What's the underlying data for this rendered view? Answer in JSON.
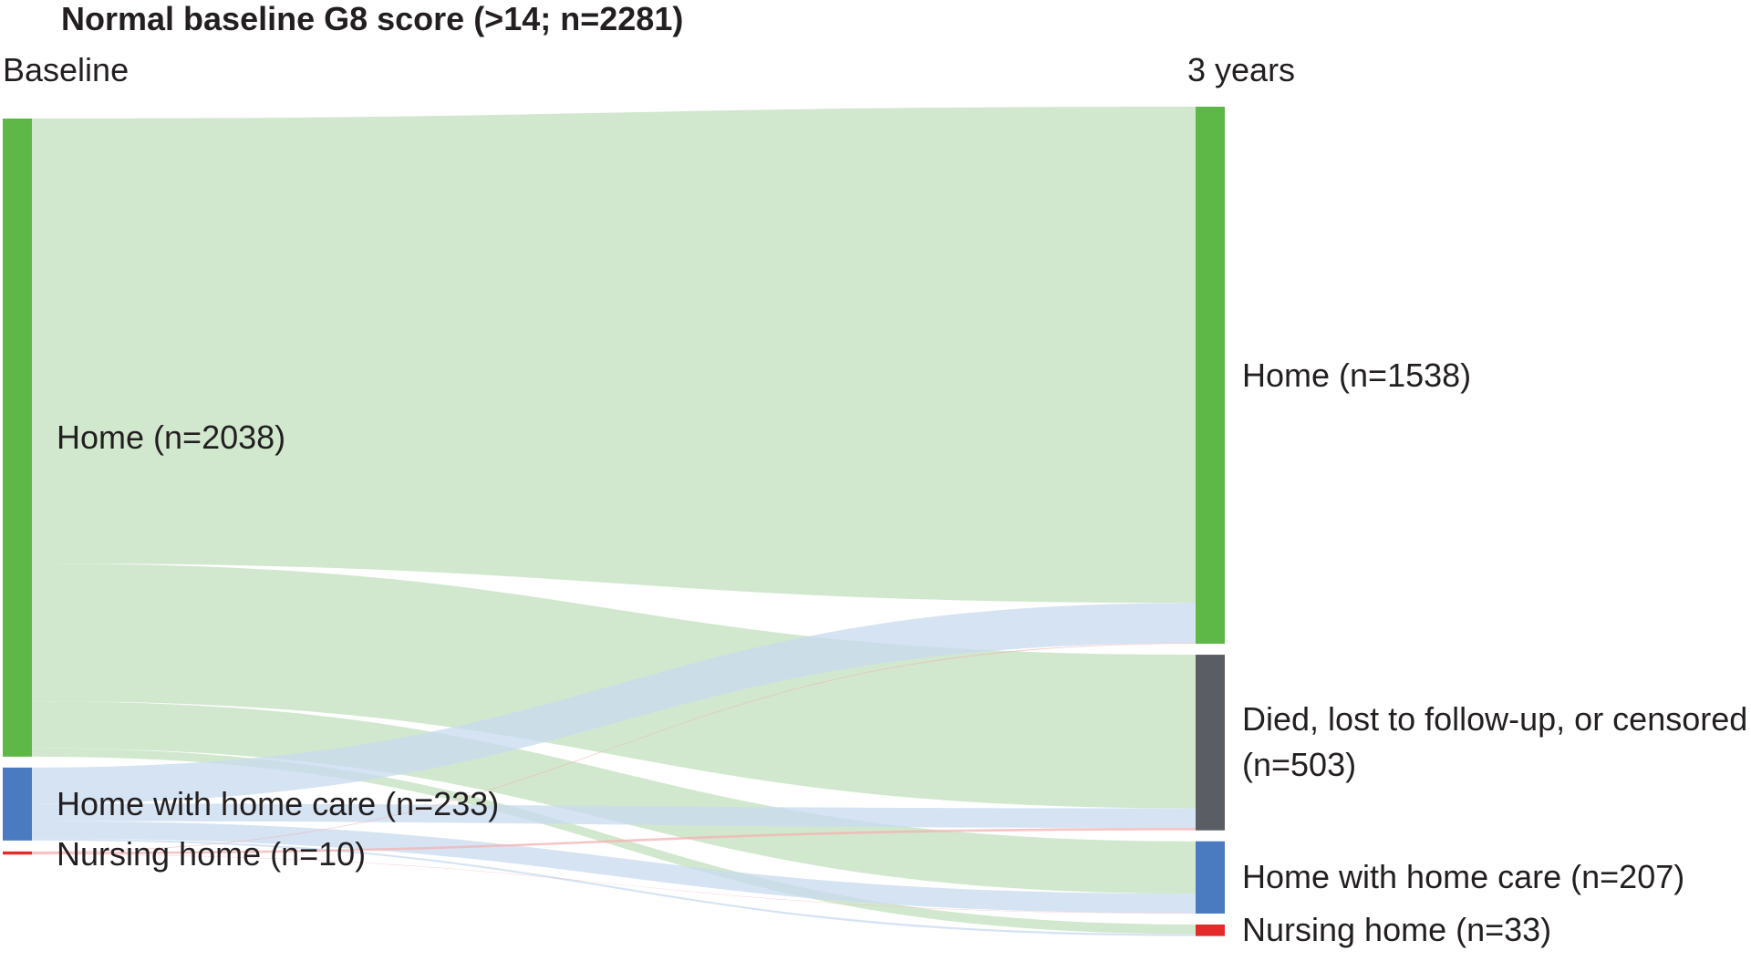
{
  "chart_data": {
    "type": "sankey",
    "title": "Normal baseline G8 score (>14; n=2281)",
    "columns": [
      "Baseline",
      "3 years"
    ],
    "colors": {
      "Home": "#5db848",
      "Home with home care": "#4a7bc1",
      "Nursing home": "#e52a2a",
      "Died, lost to follow-up, or censored": "#5a5d63",
      "link_Home": "#c4e2c0",
      "link_Home with home care": "#c9dbf0",
      "link_Nursing home": "#f4b3b3"
    },
    "baseline": [
      {
        "label": "Home (n=2038)",
        "category": "Home",
        "n": 2038
      },
      {
        "label": "Home with home care (n=233)",
        "category": "Home with home care",
        "n": 233
      },
      {
        "label": "Nursing home (n=10)",
        "category": "Nursing home",
        "n": 10
      }
    ],
    "three_years": [
      {
        "label": "Home (n=1538)",
        "category": "Home",
        "n": 1538
      },
      {
        "label": "Died, lost to follow-up, or censored (n=503)",
        "category": "Died, lost to follow-up, or censored",
        "n": 503
      },
      {
        "label": "Home with home care (n=207)",
        "category": "Home with home care",
        "n": 207
      },
      {
        "label": "Nursing home (n=33)",
        "category": "Nursing home",
        "n": 33
      }
    ],
    "flows": [
      {
        "from": "Home",
        "to": "Home",
        "n": 1421
      },
      {
        "from": "Home",
        "to": "Died, lost to follow-up, or censored",
        "n": 440
      },
      {
        "from": "Home",
        "to": "Home with home care",
        "n": 150
      },
      {
        "from": "Home",
        "to": "Nursing home",
        "n": 27
      },
      {
        "from": "Home with home care",
        "to": "Home",
        "n": 115
      },
      {
        "from": "Home with home care",
        "to": "Died, lost to follow-up, or censored",
        "n": 56
      },
      {
        "from": "Home with home care",
        "to": "Home with home care",
        "n": 56
      },
      {
        "from": "Home with home care",
        "to": "Nursing home",
        "n": 6
      },
      {
        "from": "Nursing home",
        "to": "Home",
        "n": 2
      },
      {
        "from": "Nursing home",
        "to": "Died, lost to follow-up, or censored",
        "n": 7
      },
      {
        "from": "Nursing home",
        "to": "Home with home care",
        "n": 1
      }
    ]
  }
}
